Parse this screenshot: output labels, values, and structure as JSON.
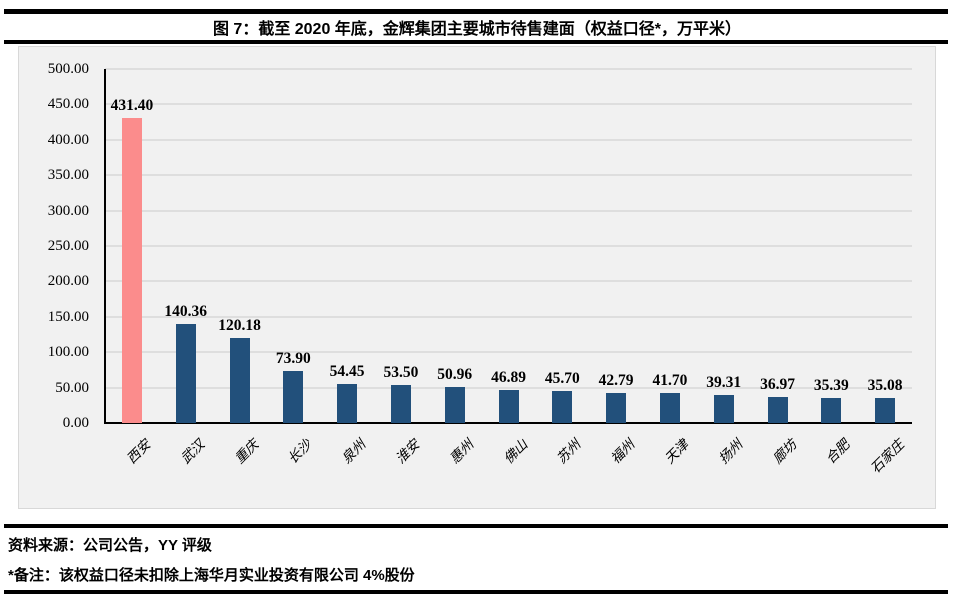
{
  "title": "图 7：截至 2020 年底，金辉集团主要城市待售建面（权益口径*，万平米）",
  "chart_data": {
    "type": "bar",
    "title": "图 7：截至 2020 年底，金辉集团主要城市待售建面（权益口径*，万平米）",
    "categories": [
      "西安",
      "武汉",
      "重庆",
      "长沙",
      "泉州",
      "淮安",
      "惠州",
      "佛山",
      "苏州",
      "福州",
      "天津",
      "扬州",
      "廊坊",
      "合肥",
      "石家庄"
    ],
    "values": [
      431.4,
      140.36,
      120.18,
      73.9,
      54.45,
      53.5,
      50.96,
      46.89,
      45.7,
      42.79,
      41.7,
      39.31,
      36.97,
      35.39,
      35.08
    ],
    "xlabel": "",
    "ylabel": "",
    "ylim": [
      0,
      500
    ],
    "ytick_step": 50,
    "ytick_format_decimals": 2,
    "grid": true,
    "legend": "none",
    "colors": {
      "bar": "#22507B",
      "highlight": "#FB8C8C",
      "plot_background": "#F1F1F1",
      "gridline": "#DEDEDE",
      "axis": "#000000"
    },
    "highlight_index": 0
  },
  "footer": {
    "source": "资料来源：公司公告，YY 评级",
    "note": "*备注：该权益口径未扣除上海华月实业投资有限公司 4%股份"
  }
}
